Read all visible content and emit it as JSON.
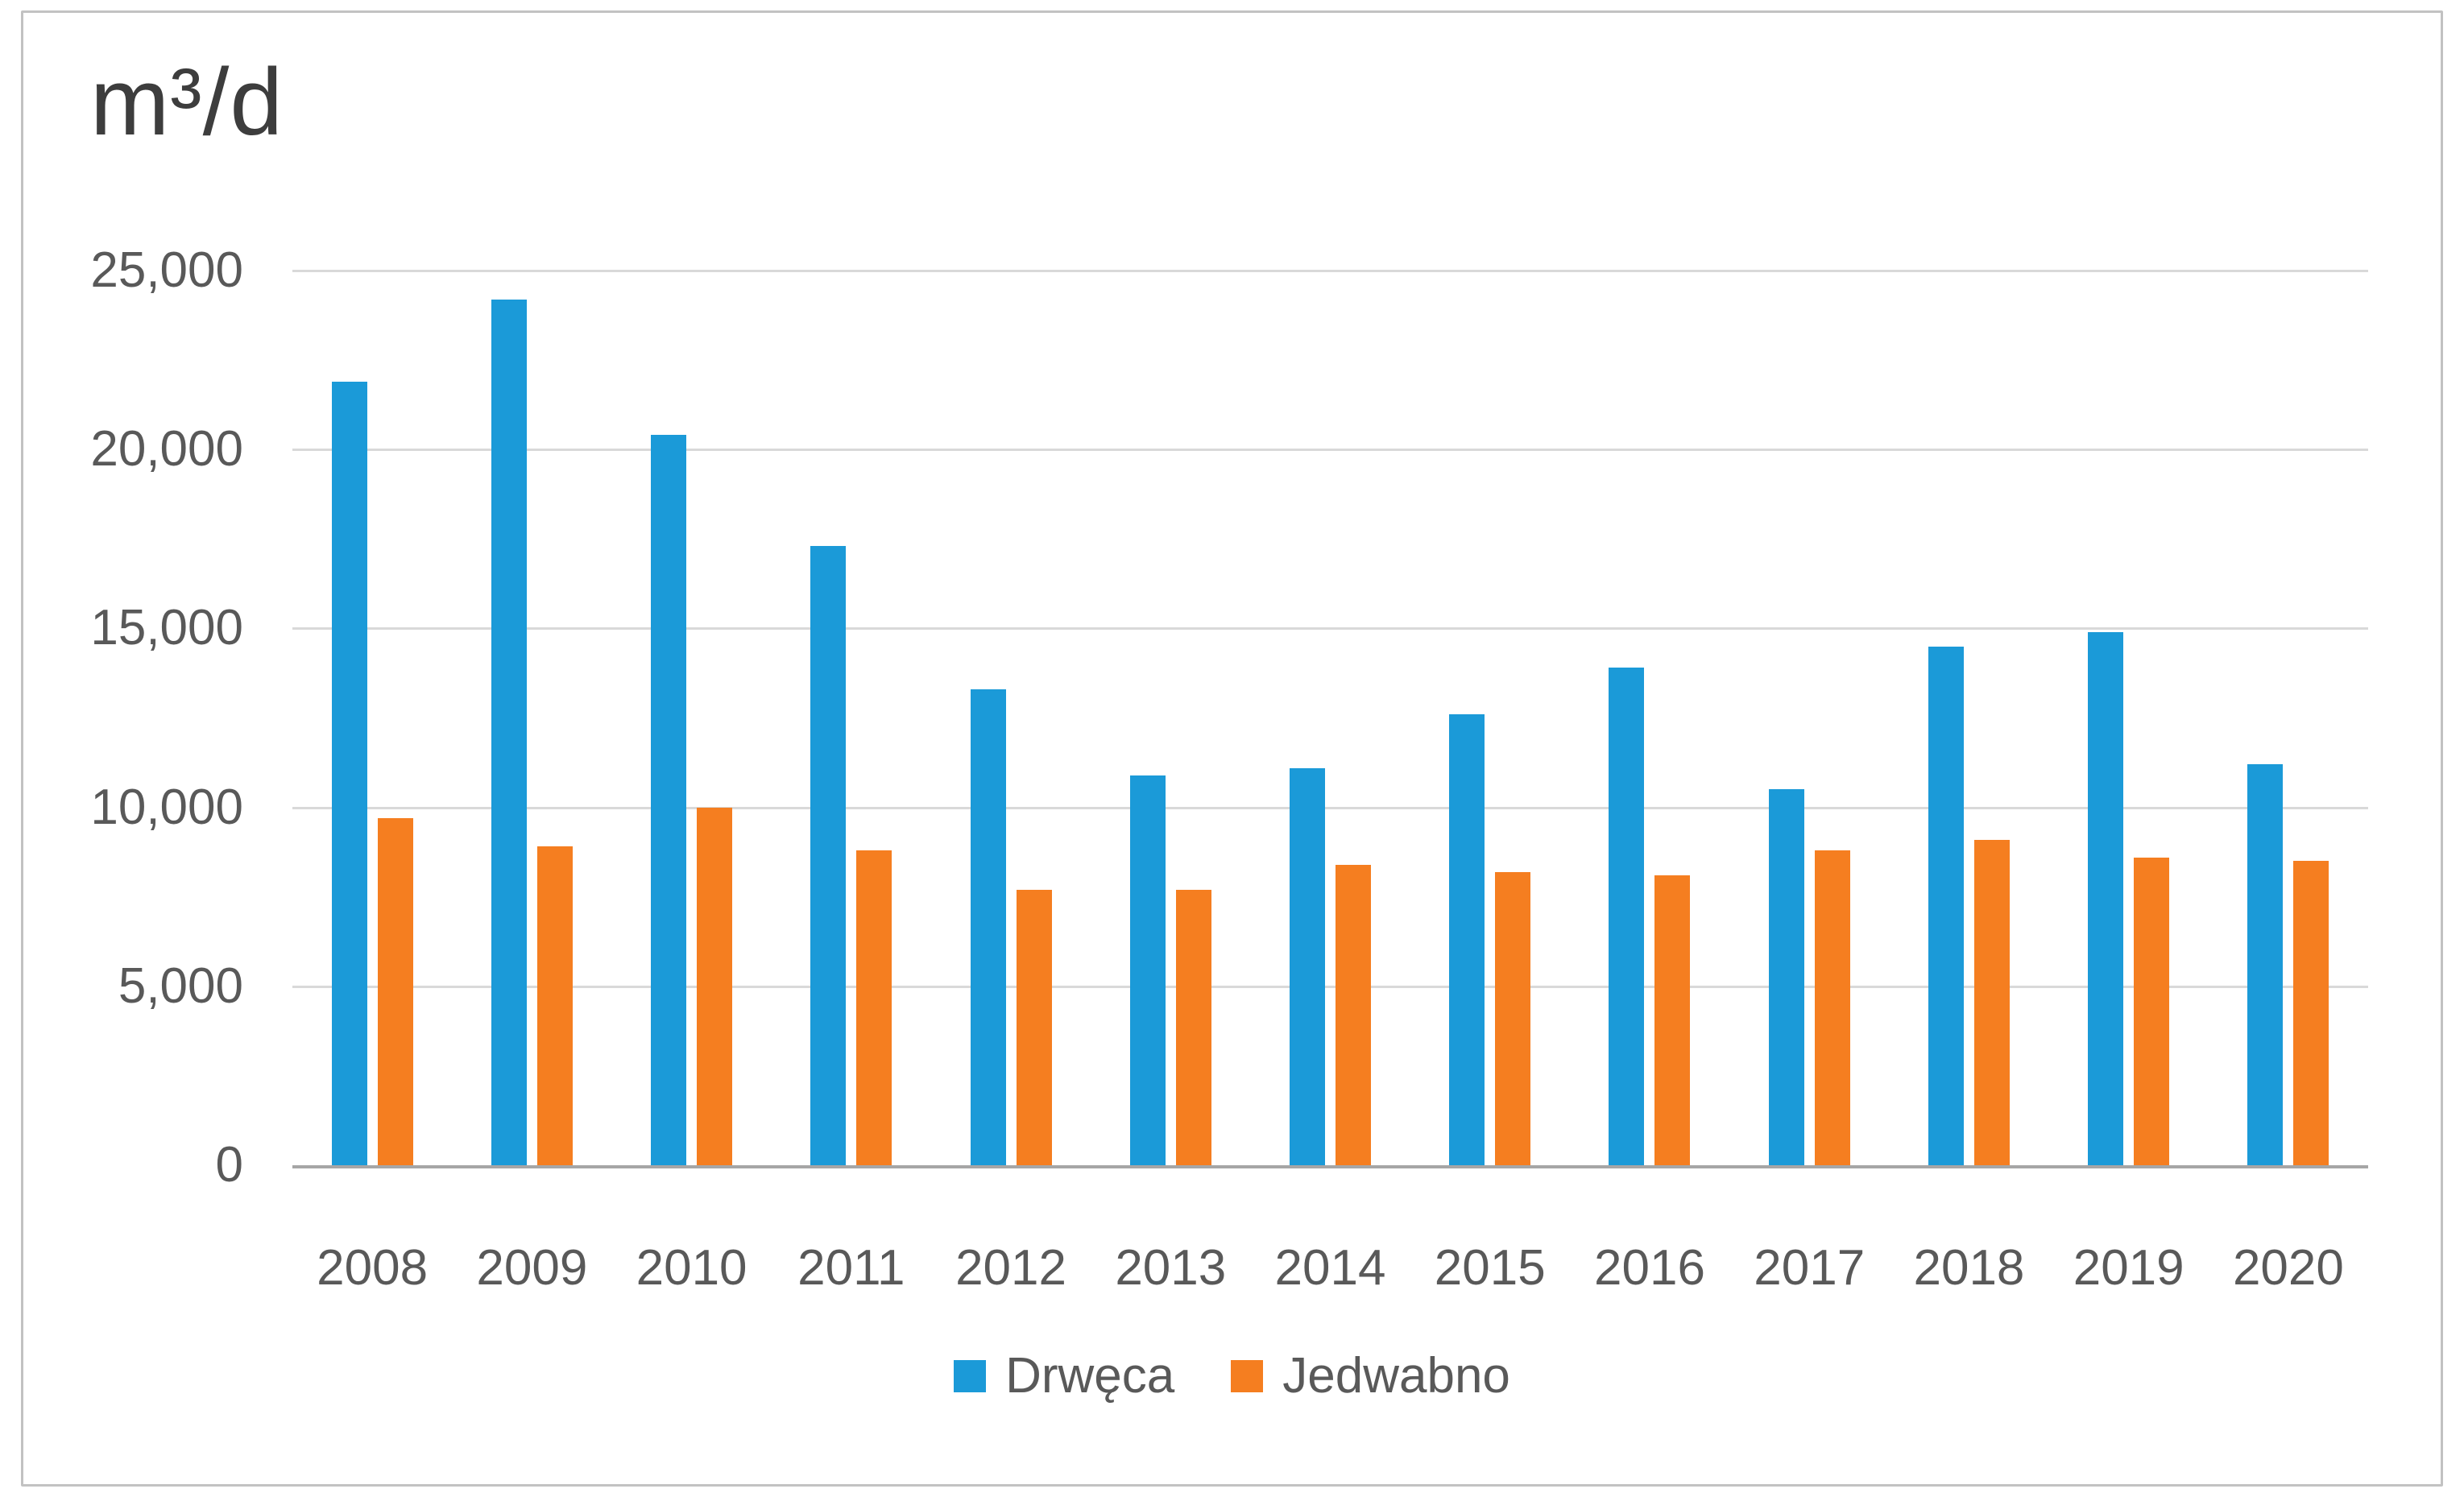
{
  "chart_data": {
    "type": "bar",
    "title": "m³/d",
    "ylabel": "m³/d",
    "xlabel": "",
    "categories": [
      "2008",
      "2009",
      "2010",
      "2011",
      "2012",
      "2013",
      "2014",
      "2015",
      "2016",
      "2017",
      "2018",
      "2019",
      "2020"
    ],
    "series": [
      {
        "name": "Drwęca",
        "color": "#1B9AD8",
        "values": [
          21900,
          24200,
          20400,
          17300,
          13300,
          10900,
          11100,
          12600,
          13900,
          10500,
          14500,
          14900,
          11200
        ]
      },
      {
        "name": "Jedwabno",
        "color": "#F57E20",
        "values": [
          9700,
          8900,
          10000,
          8800,
          7700,
          7700,
          8400,
          8200,
          8100,
          8800,
          9100,
          8600,
          8500
        ]
      }
    ],
    "ylim": [
      0,
      25000
    ],
    "yticks": [
      {
        "label": "0",
        "value": 0
      },
      {
        "label": "5,000",
        "value": 5000
      },
      {
        "label": "10,000",
        "value": 10000
      },
      {
        "label": "15,000",
        "value": 15000
      },
      {
        "label": "20,000",
        "value": 20000
      },
      {
        "label": "25,000",
        "value": 25000
      }
    ],
    "grid": "horizontal-only",
    "legend_position": "bottom-center",
    "colors": {
      "gridline": "#D9D9D9",
      "axis_line": "#A6A6A6",
      "tick_text": "#595959",
      "title_text": "#3D3D3D",
      "figure_border": "#C2C2C2"
    }
  }
}
